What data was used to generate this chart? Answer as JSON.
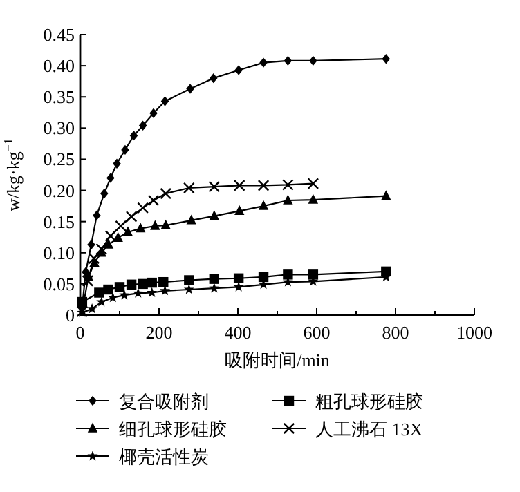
{
  "chart_data": {
    "type": "line",
    "xlabel": "吸附时间/min",
    "ylabel": "w/kg·kg$^{−1}$",
    "xlim": [
      0,
      1000
    ],
    "xticks": [
      0,
      200,
      400,
      600,
      800,
      1000
    ],
    "ylim": [
      0,
      0.45
    ],
    "yticks": [
      0,
      0.05,
      {
        "value": 0.1,
        "label": "0.10"
      },
      0.15,
      {
        "value": 0.2,
        "label": "0.20"
      },
      0.25,
      {
        "value": 0.3,
        "label": "0.30"
      },
      0.35,
      {
        "value": 0.4,
        "label": "0.40"
      },
      0.45
    ],
    "grid": false,
    "legend": "bottom",
    "line_style": "solid",
    "series": [
      {
        "name": "复合吸附剂",
        "color": "#000000",
        "marker": "diamond",
        "x": [
          5,
          14,
          28,
          42,
          61,
          77,
          93,
          114,
          136,
          159,
          186,
          215,
          279,
          338,
          402,
          465,
          527,
          591,
          776
        ],
        "values": [
          0.013,
          0.069,
          0.113,
          0.16,
          0.195,
          0.22,
          0.243,
          0.265,
          0.288,
          0.304,
          0.324,
          0.343,
          0.363,
          0.38,
          0.393,
          0.405,
          0.408,
          0.408,
          0.411
        ]
      },
      {
        "name": "粗孔球形硅胶",
        "color": "#000000",
        "marker": "square",
        "x": [
          5,
          48,
          71,
          100,
          130,
          159,
          182,
          211,
          276,
          340,
          402,
          465,
          527,
          591,
          776
        ],
        "values": [
          0.021,
          0.036,
          0.041,
          0.045,
          0.049,
          0.05,
          0.052,
          0.053,
          0.056,
          0.058,
          0.059,
          0.061,
          0.065,
          0.065,
          0.07
        ]
      },
      {
        "name": "细孔球形硅胶",
        "color": "#000000",
        "marker": "triangle",
        "x": [
          21,
          36,
          54,
          72,
          96,
          121,
          153,
          190,
          217,
          282,
          340,
          404,
          465,
          527,
          591,
          776
        ],
        "values": [
          0.061,
          0.084,
          0.1,
          0.113,
          0.124,
          0.133,
          0.139,
          0.143,
          0.144,
          0.152,
          0.159,
          0.167,
          0.175,
          0.184,
          0.185,
          0.191
        ]
      },
      {
        "name": "人工沸石 13X",
        "color": "#000000",
        "marker": "cross",
        "x": [
          5,
          19,
          35,
          54,
          77,
          103,
          130,
          159,
          186,
          217,
          276,
          340,
          404,
          465,
          527,
          591
        ],
        "values": [
          0.006,
          0.055,
          0.091,
          0.106,
          0.127,
          0.143,
          0.158,
          0.172,
          0.184,
          0.195,
          0.204,
          0.206,
          0.208,
          0.208,
          0.209,
          0.211
        ]
      },
      {
        "name": "椰壳活性炭",
        "color": "#000000",
        "marker": "star",
        "x": [
          5,
          30,
          54,
          83,
          112,
          147,
          182,
          215,
          276,
          340,
          402,
          465,
          527,
          591,
          776
        ],
        "values": [
          0.004,
          0.01,
          0.021,
          0.028,
          0.032,
          0.035,
          0.036,
          0.039,
          0.041,
          0.043,
          0.045,
          0.049,
          0.053,
          0.054,
          0.061
        ]
      }
    ]
  }
}
